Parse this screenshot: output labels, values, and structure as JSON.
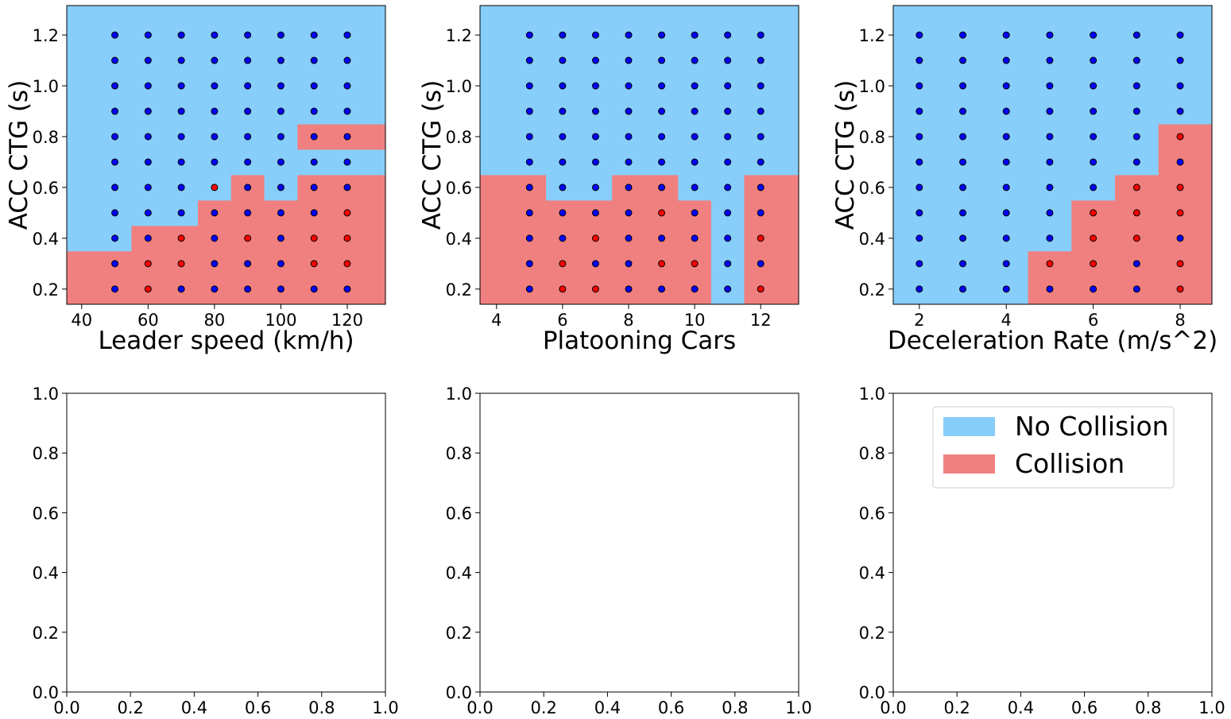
{
  "chart_data": [
    {
      "type": "decision_map",
      "x_label": "Leader speed (km/h)",
      "y_label": "ACC CTG (s)",
      "x": [
        50,
        60,
        70,
        80,
        90,
        100,
        110,
        120
      ],
      "y": [
        0.2,
        0.3,
        0.4,
        0.5,
        0.6,
        0.7,
        0.8,
        0.9,
        1.0,
        1.1,
        1.2
      ],
      "regions": [
        [
          1,
          1,
          1,
          1,
          1,
          1,
          1,
          1
        ],
        [
          1,
          1,
          1,
          1,
          1,
          1,
          1,
          1
        ],
        [
          0,
          1,
          1,
          1,
          1,
          1,
          1,
          1
        ],
        [
          0,
          0,
          0,
          1,
          1,
          1,
          1,
          1
        ],
        [
          0,
          0,
          0,
          0,
          1,
          0,
          1,
          1
        ],
        [
          0,
          0,
          0,
          0,
          0,
          0,
          0,
          0
        ],
        [
          0,
          0,
          0,
          0,
          0,
          0,
          1,
          1
        ],
        [
          0,
          0,
          0,
          0,
          0,
          0,
          0,
          0
        ],
        [
          0,
          0,
          0,
          0,
          0,
          0,
          0,
          0
        ],
        [
          0,
          0,
          0,
          0,
          0,
          0,
          0,
          0
        ],
        [
          0,
          0,
          0,
          0,
          0,
          0,
          0,
          0
        ]
      ],
      "points": [
        [
          0,
          1,
          0,
          0,
          0,
          0,
          0,
          0
        ],
        [
          0,
          1,
          1,
          0,
          0,
          0,
          1,
          1
        ],
        [
          0,
          0,
          1,
          0,
          1,
          0,
          1,
          1
        ],
        [
          0,
          0,
          0,
          0,
          0,
          0,
          0,
          1
        ],
        [
          0,
          0,
          0,
          1,
          0,
          0,
          0,
          0
        ],
        [
          0,
          0,
          0,
          0,
          0,
          0,
          0,
          0
        ],
        [
          0,
          0,
          0,
          0,
          0,
          0,
          0,
          0
        ],
        [
          0,
          0,
          0,
          0,
          0,
          0,
          0,
          0
        ],
        [
          0,
          0,
          0,
          0,
          0,
          0,
          0,
          0
        ],
        [
          0,
          0,
          0,
          0,
          0,
          0,
          0,
          0
        ],
        [
          0,
          0,
          0,
          0,
          0,
          0,
          0,
          0
        ]
      ],
      "xlim": [
        35.5,
        131.5
      ],
      "ylim": [
        0.14,
        1.316
      ],
      "xticks": [
        40,
        60,
        80,
        100,
        120
      ],
      "yticks": [
        0.2,
        0.4,
        0.6,
        0.8,
        {
          "value": 1,
          "label": "1.0"
        },
        1.2
      ]
    },
    {
      "type": "decision_map",
      "x_label": "Platooning Cars",
      "y_label": "ACC CTG (s)",
      "x": [
        5,
        6,
        7,
        8,
        9,
        10,
        11,
        12
      ],
      "y": [
        0.2,
        0.3,
        0.4,
        0.5,
        0.6,
        0.7,
        0.8,
        0.9,
        1.0,
        1.1,
        1.2
      ],
      "regions": [
        [
          1,
          1,
          1,
          1,
          1,
          1,
          0,
          1
        ],
        [
          1,
          1,
          1,
          1,
          1,
          1,
          0,
          1
        ],
        [
          1,
          1,
          1,
          1,
          1,
          1,
          0,
          1
        ],
        [
          1,
          1,
          1,
          1,
          1,
          1,
          0,
          1
        ],
        [
          1,
          0,
          0,
          1,
          1,
          0,
          0,
          1
        ],
        [
          0,
          0,
          0,
          0,
          0,
          0,
          0,
          0
        ],
        [
          0,
          0,
          0,
          0,
          0,
          0,
          0,
          0
        ],
        [
          0,
          0,
          0,
          0,
          0,
          0,
          0,
          0
        ],
        [
          0,
          0,
          0,
          0,
          0,
          0,
          0,
          0
        ],
        [
          0,
          0,
          0,
          0,
          0,
          0,
          0,
          0
        ],
        [
          0,
          0,
          0,
          0,
          0,
          0,
          0,
          0
        ]
      ],
      "points": [
        [
          0,
          1,
          1,
          0,
          0,
          0,
          0,
          1
        ],
        [
          0,
          1,
          0,
          0,
          1,
          1,
          0,
          0
        ],
        [
          0,
          0,
          1,
          0,
          0,
          0,
          0,
          1
        ],
        [
          0,
          0,
          0,
          0,
          1,
          0,
          0,
          0
        ],
        [
          0,
          0,
          0,
          0,
          0,
          0,
          0,
          0
        ],
        [
          0,
          0,
          0,
          0,
          0,
          0,
          0,
          0
        ],
        [
          0,
          0,
          0,
          0,
          0,
          0,
          0,
          0
        ],
        [
          0,
          0,
          0,
          0,
          0,
          0,
          0,
          0
        ],
        [
          0,
          0,
          0,
          0,
          0,
          0,
          0,
          0
        ],
        [
          0,
          0,
          0,
          0,
          0,
          0,
          0,
          0
        ],
        [
          0,
          0,
          0,
          0,
          0,
          0,
          0,
          0
        ]
      ],
      "xlim": [
        3.5,
        13.15
      ],
      "ylim": [
        0.14,
        1.316
      ],
      "xticks": [
        4,
        6,
        8,
        10,
        12
      ],
      "yticks": [
        0.2,
        0.4,
        0.6,
        0.8,
        {
          "value": 1,
          "label": "1.0"
        },
        1.2
      ]
    },
    {
      "type": "decision_map",
      "x_label": "Deceleration Rate (m/s^2)",
      "y_label": "ACC CTG (s)",
      "x": [
        2,
        3,
        4,
        5,
        6,
        7,
        8
      ],
      "y": [
        0.2,
        0.3,
        0.4,
        0.5,
        0.6,
        0.7,
        0.8,
        0.9,
        1.0,
        1.1,
        1.2
      ],
      "regions": [
        [
          0,
          0,
          0,
          1,
          1,
          1,
          1
        ],
        [
          0,
          0,
          0,
          1,
          1,
          1,
          1
        ],
        [
          0,
          0,
          0,
          0,
          1,
          1,
          1
        ],
        [
          0,
          0,
          0,
          0,
          1,
          1,
          1
        ],
        [
          0,
          0,
          0,
          0,
          0,
          1,
          1
        ],
        [
          0,
          0,
          0,
          0,
          0,
          0,
          1
        ],
        [
          0,
          0,
          0,
          0,
          0,
          0,
          1
        ],
        [
          0,
          0,
          0,
          0,
          0,
          0,
          0
        ],
        [
          0,
          0,
          0,
          0,
          0,
          0,
          0
        ],
        [
          0,
          0,
          0,
          0,
          0,
          0,
          0
        ],
        [
          0,
          0,
          0,
          0,
          0,
          0,
          0
        ]
      ],
      "points": [
        [
          0,
          0,
          0,
          0,
          0,
          0,
          1
        ],
        [
          0,
          0,
          0,
          1,
          1,
          0,
          1
        ],
        [
          0,
          0,
          0,
          0,
          1,
          1,
          0
        ],
        [
          0,
          0,
          0,
          0,
          1,
          1,
          1
        ],
        [
          0,
          0,
          0,
          0,
          0,
          1,
          1
        ],
        [
          0,
          0,
          0,
          0,
          0,
          0,
          0
        ],
        [
          0,
          0,
          0,
          0,
          0,
          0,
          1
        ],
        [
          0,
          0,
          0,
          0,
          0,
          0,
          0
        ],
        [
          0,
          0,
          0,
          0,
          0,
          0,
          0
        ],
        [
          0,
          0,
          0,
          0,
          0,
          0,
          0
        ],
        [
          0,
          0,
          0,
          0,
          0,
          0,
          0
        ]
      ],
      "xlim": [
        1.4,
        8.73
      ],
      "ylim": [
        0.14,
        1.316
      ],
      "xticks": [
        2,
        4,
        6,
        8
      ],
      "yticks": [
        0.2,
        0.4,
        0.6,
        0.8,
        {
          "value": 1,
          "label": "1.0"
        },
        1.2
      ]
    },
    {
      "type": "axes",
      "xlim": [
        0,
        1
      ],
      "ylim": [
        0,
        1
      ],
      "xticks": [
        {
          "value": 0,
          "label": "0.0"
        },
        0.2,
        0.4,
        0.6,
        0.8,
        {
          "value": 1,
          "label": "1.0"
        }
      ],
      "yticks": [
        {
          "value": 0,
          "label": "0.0"
        },
        0.2,
        0.4,
        0.6,
        0.8,
        {
          "value": 1,
          "label": "1.0"
        }
      ]
    },
    {
      "type": "axes",
      "xlim": [
        0,
        1
      ],
      "ylim": [
        0,
        1
      ],
      "xticks": [
        {
          "value": 0,
          "label": "0.0"
        },
        0.2,
        0.4,
        0.6,
        0.8,
        {
          "value": 1,
          "label": "1.0"
        }
      ],
      "yticks": [
        {
          "value": 0,
          "label": "0.0"
        },
        0.2,
        0.4,
        0.6,
        0.8,
        {
          "value": 1,
          "label": "1.0"
        }
      ]
    },
    {
      "type": "axes",
      "xlim": [
        0,
        1
      ],
      "ylim": [
        0,
        1
      ],
      "xticks": [
        {
          "value": 0,
          "label": "0.0"
        },
        0.2,
        0.4,
        0.6,
        0.8,
        {
          "value": 1,
          "label": "1.0"
        }
      ],
      "yticks": [
        {
          "value": 0,
          "label": "0.0"
        },
        0.2,
        0.4,
        0.6,
        0.8,
        {
          "value": 1,
          "label": "1.0"
        }
      ]
    }
  ],
  "classes": [
    {
      "name": "No Collision",
      "region_color": "#87cefa",
      "point_color": "#0000ff"
    },
    {
      "name": "Collision",
      "region_color": "#f08080",
      "point_color": "#ff0000"
    }
  ],
  "legend": {
    "axes": 5,
    "loc": "upper right"
  }
}
